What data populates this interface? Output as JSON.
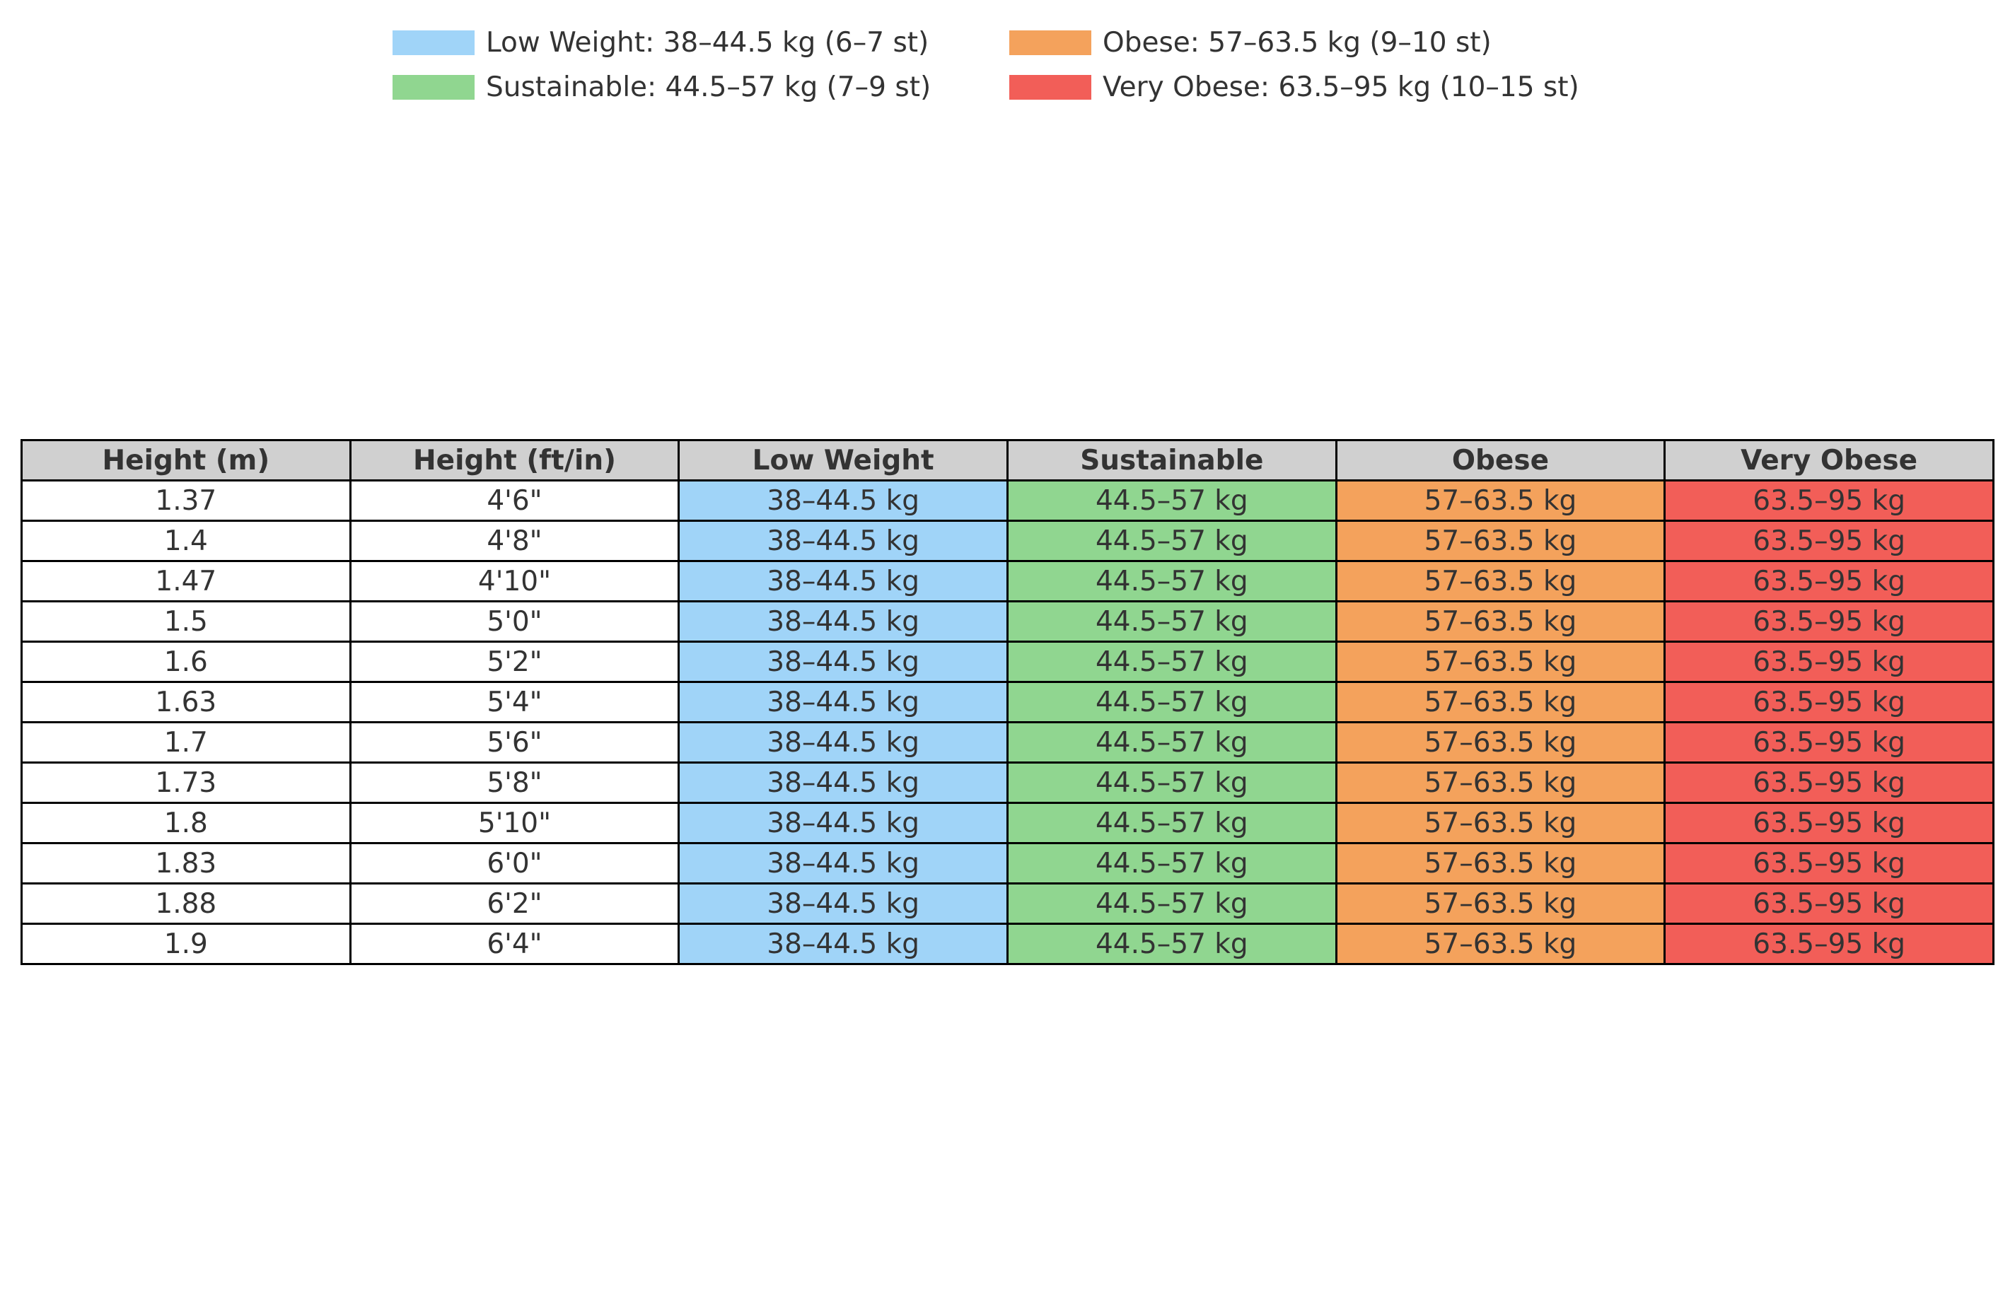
{
  "chart_data": {
    "type": "table",
    "legend_placement": "top-center",
    "legend": [
      {
        "label": "Low Weight: 38–44.5 kg (6–7 st)",
        "color": "#a0d4f8"
      },
      {
        "label": "Sustainable: 44.5–57 kg (7–9 st)",
        "color": "#90d690"
      },
      {
        "label": "Obese: 57–63.5 kg (9–10 st)",
        "color": "#f4a25c"
      },
      {
        "label": "Very Obese: 63.5–95 kg (10–15 st)",
        "color": "#f25e58"
      }
    ],
    "columns": [
      "Height (m)",
      "Height (ft/in)",
      "Low Weight",
      "Sustainable",
      "Obese",
      "Very Obese"
    ],
    "header_color": "#d0d0d0",
    "category_colors": [
      "#a0d4f8",
      "#90d690",
      "#f4a25c",
      "#f25e58"
    ],
    "rows": [
      [
        "1.37",
        "4'6\"",
        "38–44.5 kg",
        "44.5–57 kg",
        "57–63.5 kg",
        "63.5–95 kg"
      ],
      [
        "1.4",
        "4'8\"",
        "38–44.5 kg",
        "44.5–57 kg",
        "57–63.5 kg",
        "63.5–95 kg"
      ],
      [
        "1.47",
        "4'10\"",
        "38–44.5 kg",
        "44.5–57 kg",
        "57–63.5 kg",
        "63.5–95 kg"
      ],
      [
        "1.5",
        "5'0\"",
        "38–44.5 kg",
        "44.5–57 kg",
        "57–63.5 kg",
        "63.5–95 kg"
      ],
      [
        "1.6",
        "5'2\"",
        "38–44.5 kg",
        "44.5–57 kg",
        "57–63.5 kg",
        "63.5–95 kg"
      ],
      [
        "1.63",
        "5'4\"",
        "38–44.5 kg",
        "44.5–57 kg",
        "57–63.5 kg",
        "63.5–95 kg"
      ],
      [
        "1.7",
        "5'6\"",
        "38–44.5 kg",
        "44.5–57 kg",
        "57–63.5 kg",
        "63.5–95 kg"
      ],
      [
        "1.73",
        "5'8\"",
        "38–44.5 kg",
        "44.5–57 kg",
        "57–63.5 kg",
        "63.5–95 kg"
      ],
      [
        "1.8",
        "5'10\"",
        "38–44.5 kg",
        "44.5–57 kg",
        "57–63.5 kg",
        "63.5–95 kg"
      ],
      [
        "1.83",
        "6'0\"",
        "38–44.5 kg",
        "44.5–57 kg",
        "57–63.5 kg",
        "63.5–95 kg"
      ],
      [
        "1.88",
        "6'2\"",
        "38–44.5 kg",
        "44.5–57 kg",
        "57–63.5 kg",
        "63.5–95 kg"
      ],
      [
        "1.9",
        "6'4\"",
        "38–44.5 kg",
        "44.5–57 kg",
        "57–63.5 kg",
        "63.5–95 kg"
      ]
    ]
  }
}
